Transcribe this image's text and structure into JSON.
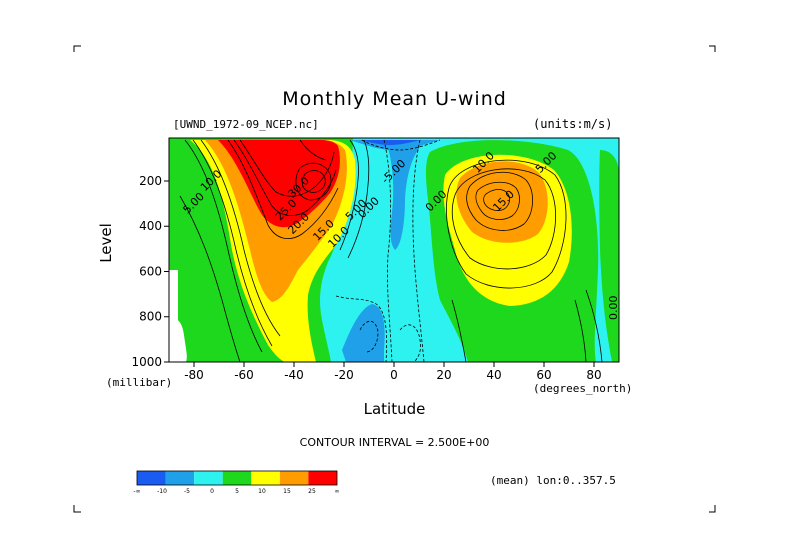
{
  "header": {
    "title": "Monthly Mean U-wind",
    "dataset": "[UWND_1972-09_NCEP.nc]",
    "units": "(units:m/s)"
  },
  "footer": {
    "contour_interval": "CONTOUR INTERVAL = 2.500E+00",
    "mean_info": "(mean) lon:0..357.5"
  },
  "chart_data": {
    "type": "heatmap",
    "title": "Monthly Mean U-wind",
    "xlabel": "Latitude",
    "ylabel": "Level",
    "x_unit": "(degrees_north)",
    "y_unit": "(millibar)",
    "xlim": [
      -90,
      90
    ],
    "ylim": [
      1000,
      10
    ],
    "x_ticks": [
      -80,
      -60,
      -40,
      -20,
      0,
      20,
      40,
      60,
      80
    ],
    "x_tick_labels": [
      "-80",
      "-60",
      "-40",
      "-20",
      "0",
      "20",
      "40",
      "60",
      "80"
    ],
    "y_ticks": [
      200,
      400,
      600,
      800,
      1000
    ],
    "y_tick_labels": [
      "200",
      "400",
      "600",
      "800",
      "1000"
    ],
    "contour_interval": 2.5,
    "contour_labels": [
      {
        "text": "10.0",
        "x": -73,
        "y": 200
      },
      {
        "text": "5.00",
        "x": -80,
        "y": 300
      },
      {
        "text": "30.0",
        "x": -38,
        "y": 230
      },
      {
        "text": "25.0",
        "x": -43,
        "y": 330
      },
      {
        "text": "20.0",
        "x": -38,
        "y": 390
      },
      {
        "text": "15.0",
        "x": -28,
        "y": 420
      },
      {
        "text": "10.0",
        "x": -22,
        "y": 450
      },
      {
        "text": "5.00",
        "x": -15,
        "y": 330
      },
      {
        "text": "0.00",
        "x": -10,
        "y": 320
      },
      {
        "text": "-5.00",
        "x": 0,
        "y": 160
      },
      {
        "text": "0.00",
        "x": 17,
        "y": 290
      },
      {
        "text": "10.0",
        "x": 36,
        "y": 120
      },
      {
        "text": "5.00",
        "x": 61,
        "y": 120
      },
      {
        "text": "15.0",
        "x": 44,
        "y": 290
      },
      {
        "text": "0.00",
        "x": 88,
        "y": 760
      }
    ],
    "colorbar": {
      "colors": [
        "#1a5cf2",
        "#1fa0e8",
        "#2ef2f0",
        "#1ed81e",
        "#ffff00",
        "#ff9c00",
        "#ff0000"
      ],
      "tick_labels": [
        "-∞",
        "-10",
        "-5",
        "0",
        "5",
        "10",
        "15",
        "25",
        "∞"
      ]
    }
  }
}
